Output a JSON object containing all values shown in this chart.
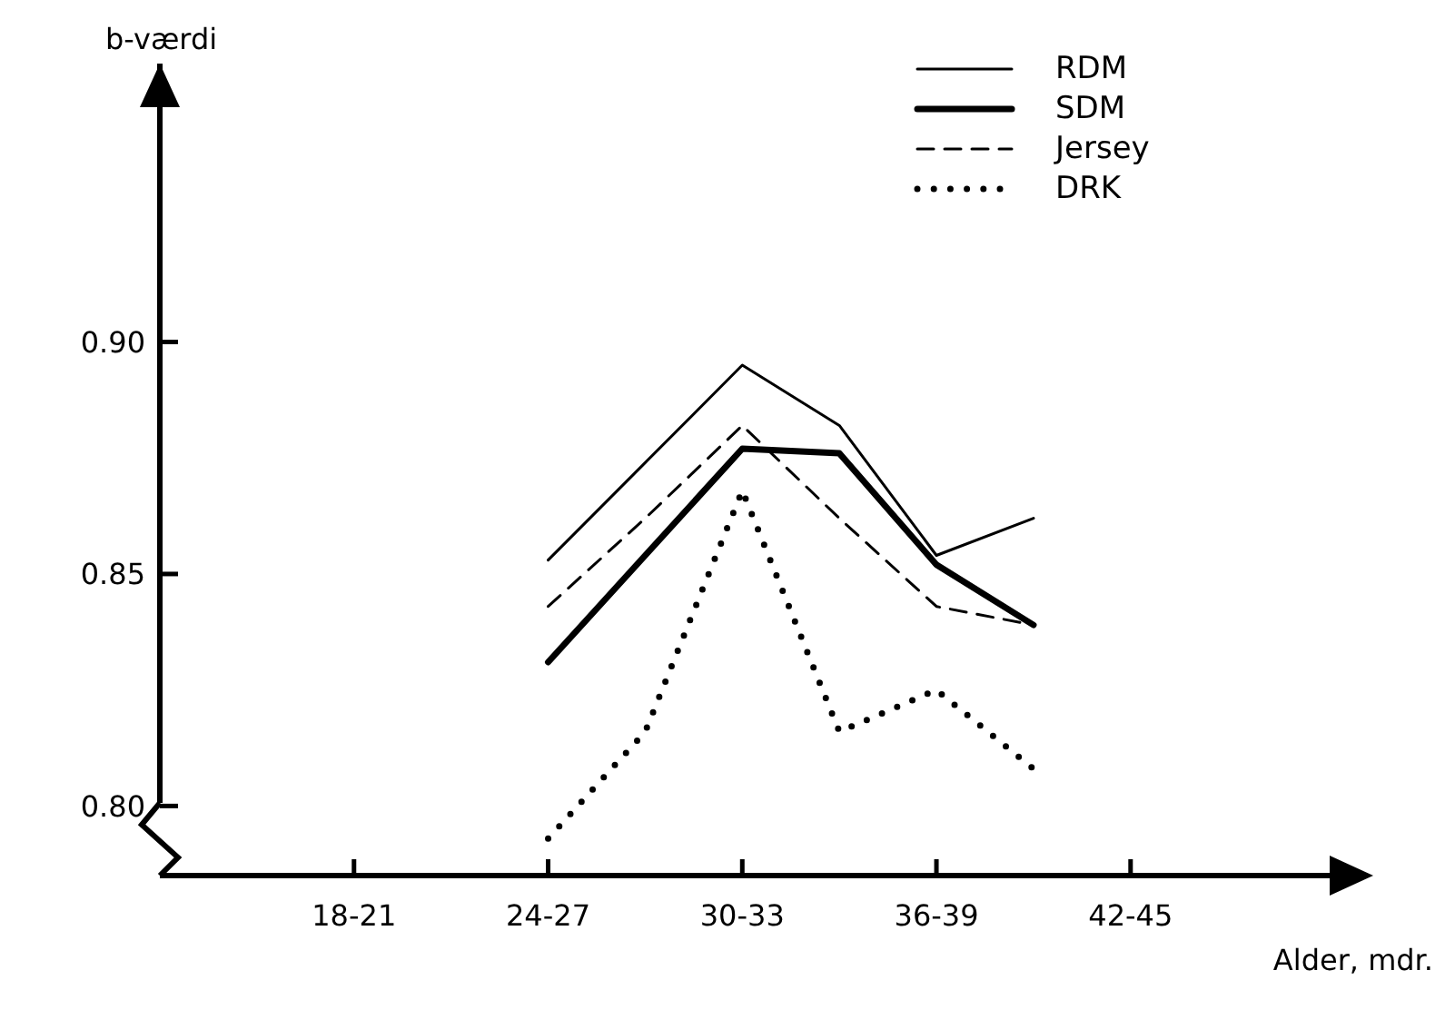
{
  "chart_data": {
    "type": "line",
    "xlabel": "Alder, mdr.",
    "ylabel": "b-værdi",
    "categories": [
      "18-21",
      null,
      "24-27",
      null,
      "30-33",
      null,
      "36-39",
      null,
      "42-45"
    ],
    "ylim": [
      0.785,
      0.96
    ],
    "yticks": [
      {
        "value": 0.8,
        "label": "0.80"
      },
      {
        "value": 0.85,
        "label": "0.85"
      },
      {
        "value": 0.9,
        "label": "0.90"
      }
    ],
    "series": [
      {
        "name": "RDM",
        "color": "#000000",
        "line_style": "solid",
        "values": [
          null,
          null,
          0.853,
          0.874,
          0.895,
          0.882,
          0.854,
          0.862,
          null
        ]
      },
      {
        "name": "SDM",
        "color": "#000000",
        "line_style": "solid",
        "values": [
          null,
          null,
          0.831,
          0.854,
          0.877,
          0.876,
          0.852,
          0.839,
          null
        ]
      },
      {
        "name": "Jersey",
        "color": "#000000",
        "line_style": "dashed",
        "values": [
          null,
          null,
          0.843,
          0.862,
          0.882,
          0.862,
          0.843,
          0.839,
          null
        ]
      },
      {
        "name": "DRK",
        "color": "#000000",
        "line_style": "dotted",
        "values": [
          null,
          null,
          0.793,
          0.816,
          0.868,
          0.816,
          0.825,
          0.808,
          null
        ]
      }
    ],
    "legend": "top right"
  }
}
